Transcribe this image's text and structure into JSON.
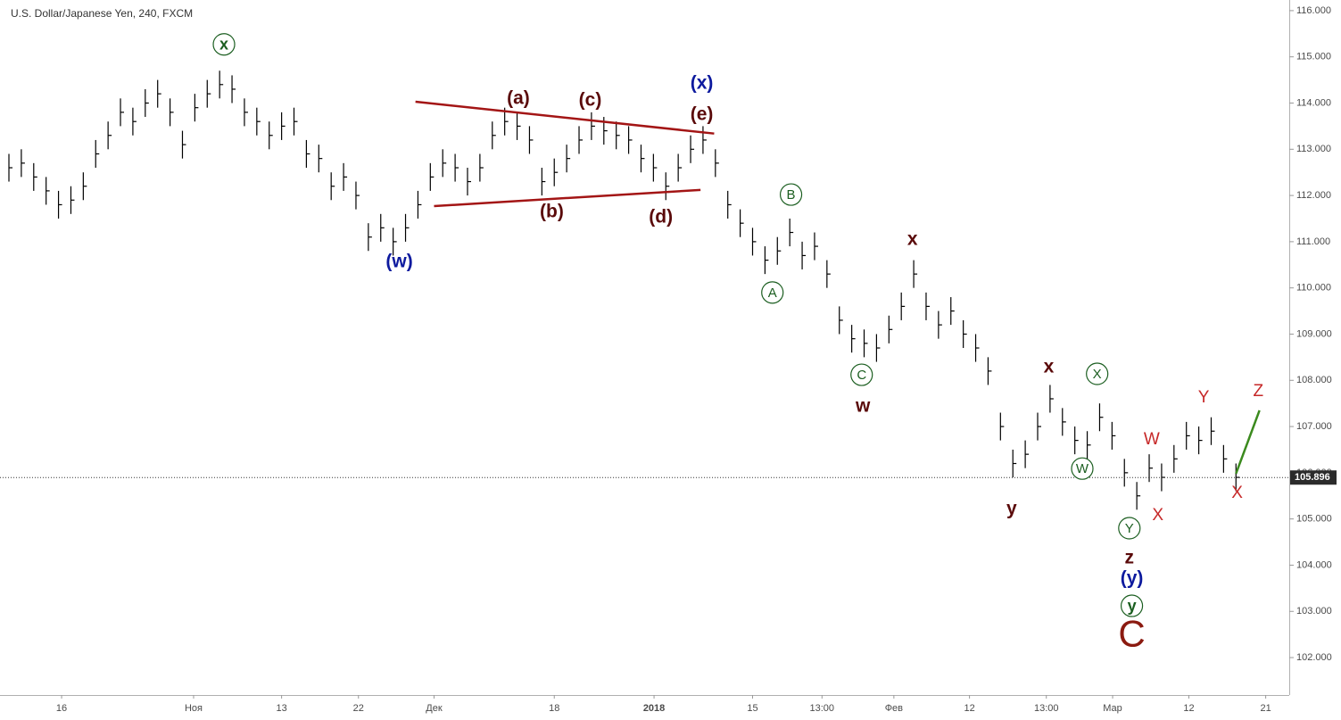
{
  "chart_data": {
    "type": "ohlc",
    "title": "U.S. Dollar/Japanese Yen, 240, FXCM",
    "x": [
      0,
      1,
      2,
      3,
      4,
      5,
      6,
      7,
      8,
      9,
      10,
      11,
      12,
      13,
      14,
      15,
      16,
      17,
      18,
      19,
      20,
      21,
      22,
      23,
      24,
      25,
      26,
      27,
      28,
      29,
      30,
      31,
      32,
      33,
      34,
      35,
      36,
      37,
      38,
      39,
      40,
      41,
      42,
      43,
      44,
      45,
      46,
      47,
      48,
      49,
      50,
      51,
      52,
      53,
      54,
      55,
      56,
      57,
      58,
      59,
      60,
      61,
      62,
      63,
      64,
      65,
      66,
      67,
      68,
      69,
      70,
      71,
      72,
      73,
      74,
      75,
      76,
      77,
      78,
      79,
      80,
      81,
      82,
      83,
      84,
      85,
      86,
      87,
      88,
      89,
      90,
      91,
      92,
      93,
      94,
      95,
      96,
      97,
      98,
      99
    ],
    "high": [
      112.9,
      113.0,
      112.7,
      112.4,
      112.1,
      112.2,
      112.5,
      113.2,
      113.6,
      114.1,
      113.9,
      114.3,
      114.5,
      114.1,
      113.4,
      114.2,
      114.5,
      114.7,
      114.6,
      114.1,
      113.9,
      113.6,
      113.8,
      113.9,
      113.2,
      113.1,
      112.5,
      112.7,
      112.3,
      111.4,
      111.6,
      111.3,
      111.6,
      112.1,
      112.7,
      113.0,
      112.9,
      112.6,
      112.9,
      113.6,
      113.9,
      113.8,
      113.5,
      112.6,
      112.8,
      113.1,
      113.5,
      113.8,
      113.7,
      113.6,
      113.5,
      113.1,
      112.9,
      112.5,
      112.9,
      113.3,
      113.5,
      113.0,
      112.1,
      111.7,
      111.3,
      110.9,
      111.1,
      111.5,
      111.0,
      111.2,
      110.6,
      109.6,
      109.2,
      109.1,
      109.0,
      109.4,
      109.9,
      110.6,
      109.9,
      109.5,
      109.8,
      109.3,
      109.0,
      108.5,
      107.3,
      106.5,
      106.7,
      107.3,
      107.9,
      107.4,
      107.0,
      106.9,
      107.5,
      107.1,
      106.3,
      105.8,
      106.4,
      106.2,
      106.6,
      107.1,
      107.0,
      107.2,
      106.6,
      106.2
    ],
    "low": [
      112.3,
      112.4,
      112.1,
      111.8,
      111.5,
      111.6,
      111.9,
      112.6,
      113.0,
      113.5,
      113.3,
      113.7,
      113.9,
      113.5,
      112.8,
      113.6,
      113.9,
      114.1,
      114.0,
      113.5,
      113.3,
      113.0,
      113.2,
      113.3,
      112.6,
      112.5,
      111.9,
      112.1,
      111.7,
      110.8,
      111.0,
      110.7,
      111.0,
      111.5,
      112.1,
      112.4,
      112.3,
      112.0,
      112.3,
      113.0,
      113.3,
      113.2,
      112.9,
      112.0,
      112.2,
      112.5,
      112.9,
      113.2,
      113.1,
      113.0,
      112.9,
      112.5,
      112.3,
      111.9,
      112.3,
      112.7,
      112.9,
      112.4,
      111.5,
      111.1,
      110.7,
      110.3,
      110.5,
      110.9,
      110.4,
      110.6,
      110.0,
      109.0,
      108.6,
      108.5,
      108.4,
      108.8,
      109.3,
      110.0,
      109.3,
      108.9,
      109.2,
      108.7,
      108.4,
      107.9,
      106.7,
      105.9,
      106.1,
      106.7,
      107.3,
      106.8,
      106.4,
      106.3,
      106.9,
      106.5,
      105.7,
      105.2,
      105.8,
      105.6,
      106.0,
      106.5,
      106.4,
      106.6,
      106.0,
      105.6
    ],
    "close": [
      112.6,
      112.7,
      112.4,
      112.1,
      111.8,
      111.9,
      112.2,
      112.9,
      113.3,
      113.8,
      113.6,
      114.0,
      114.2,
      113.8,
      113.1,
      113.9,
      114.2,
      114.4,
      114.3,
      113.8,
      113.6,
      113.3,
      113.5,
      113.6,
      112.9,
      112.8,
      112.2,
      112.4,
      112.0,
      111.1,
      111.3,
      111.0,
      111.3,
      111.8,
      112.4,
      112.7,
      112.6,
      112.3,
      112.6,
      113.3,
      113.6,
      113.5,
      113.2,
      112.3,
      112.5,
      112.8,
      113.2,
      113.5,
      113.4,
      113.3,
      113.2,
      112.8,
      112.6,
      112.2,
      112.6,
      113.0,
      113.2,
      112.7,
      111.8,
      111.4,
      111.0,
      110.6,
      110.8,
      111.2,
      110.7,
      110.9,
      110.3,
      109.3,
      108.9,
      108.8,
      108.7,
      109.1,
      109.6,
      110.3,
      109.6,
      109.2,
      109.5,
      109.0,
      108.7,
      108.2,
      107.0,
      106.2,
      106.4,
      107.0,
      107.6,
      107.1,
      106.7,
      106.6,
      107.2,
      106.8,
      106.0,
      105.5,
      106.1,
      105.9,
      106.3,
      106.8,
      106.7,
      106.9,
      106.3,
      105.9
    ],
    "color": "#000000",
    "xlim": [
      -0.72,
      103.3
    ],
    "ylim": [
      101.19,
      116.23
    ],
    "xticks": [
      {
        "value": 4.25,
        "label": "16"
      },
      {
        "value": 14.9,
        "label": "Ноя"
      },
      {
        "value": 22.0,
        "label": "13"
      },
      {
        "value": 28.2,
        "label": "22"
      },
      {
        "value": 34.3,
        "label": "Дек"
      },
      {
        "value": 44.0,
        "label": "18"
      },
      {
        "value": 52.05,
        "label": "2018"
      },
      {
        "value": 60.0,
        "label": "15"
      },
      {
        "value": 65.6,
        "label": "13:00"
      },
      {
        "value": 71.4,
        "label": "Фев"
      },
      {
        "value": 77.5,
        "label": "12"
      },
      {
        "value": 83.7,
        "label": "13:00"
      },
      {
        "value": 89.05,
        "label": "Мар"
      },
      {
        "value": 95.2,
        "label": "12"
      },
      {
        "value": 101.4,
        "label": "21"
      }
    ],
    "yticks": [
      {
        "value": 102,
        "label": "102.000"
      },
      {
        "value": 103,
        "label": "103.000"
      },
      {
        "value": 104,
        "label": "104.000"
      },
      {
        "value": 105,
        "label": "105.000"
      },
      {
        "value": 106,
        "label": "106.000"
      },
      {
        "value": 107,
        "label": "107.000"
      },
      {
        "value": 108,
        "label": "108.000"
      },
      {
        "value": 109,
        "label": "109.000"
      },
      {
        "value": 110,
        "label": "110.000"
      },
      {
        "value": 111,
        "label": "111.000"
      },
      {
        "value": 112,
        "label": "112.000"
      },
      {
        "value": 113,
        "label": "113.000"
      },
      {
        "value": 114,
        "label": "114.000"
      },
      {
        "value": 115,
        "label": "115.000"
      },
      {
        "value": 116,
        "label": "116.000"
      }
    ],
    "last_price": 105.896,
    "grid": false,
    "annotations": [
      {
        "text": "x",
        "x": 17.35,
        "y": 115.27,
        "color": "#1b5e20",
        "style": "circled-bold"
      },
      {
        "text": "(w)",
        "x": 31.5,
        "y": 110.57,
        "color": "#0d1a9e",
        "style": "bold"
      },
      {
        "text": "(a)",
        "x": 41.1,
        "y": 114.11,
        "color": "#5a0a0a",
        "style": "bold"
      },
      {
        "text": "(c)",
        "x": 46.9,
        "y": 114.07,
        "color": "#5a0a0a",
        "style": "bold"
      },
      {
        "text": "(x)",
        "x": 55.9,
        "y": 114.44,
        "color": "#0d1a9e",
        "style": "bold"
      },
      {
        "text": "(e)",
        "x": 55.9,
        "y": 113.76,
        "color": "#5a0a0a",
        "style": "bold"
      },
      {
        "text": "(b)",
        "x": 43.8,
        "y": 111.66,
        "color": "#5a0a0a",
        "style": "bold"
      },
      {
        "text": "(d)",
        "x": 52.6,
        "y": 111.54,
        "color": "#5a0a0a",
        "style": "bold"
      },
      {
        "text": "B",
        "x": 63.1,
        "y": 112.02,
        "color": "#1b5e20",
        "style": "circled"
      },
      {
        "text": "A",
        "x": 61.6,
        "y": 109.9,
        "color": "#1b5e20",
        "style": "circled"
      },
      {
        "text": "x",
        "x": 72.9,
        "y": 111.06,
        "color": "#5a0a0a",
        "style": "bold"
      },
      {
        "text": "C",
        "x": 68.8,
        "y": 108.12,
        "color": "#1b5e20",
        "style": "circled"
      },
      {
        "text": "w",
        "x": 68.9,
        "y": 107.45,
        "color": "#5a0a0a",
        "style": "bold"
      },
      {
        "text": "x",
        "x": 83.9,
        "y": 108.3,
        "color": "#5a0a0a",
        "style": "bold"
      },
      {
        "text": "X",
        "x": 87.8,
        "y": 108.14,
        "color": "#1b5e20",
        "style": "circled"
      },
      {
        "text": "W",
        "x": 86.6,
        "y": 106.09,
        "color": "#1b5e20",
        "style": "circled"
      },
      {
        "text": "y",
        "x": 80.9,
        "y": 105.23,
        "color": "#5a0a0a",
        "style": "bold"
      },
      {
        "text": "W",
        "x": 92.2,
        "y": 106.73,
        "color": "#c62828",
        "style": "plain"
      },
      {
        "text": "Y",
        "x": 96.4,
        "y": 107.64,
        "color": "#c62828",
        "style": "plain"
      },
      {
        "text": "Z",
        "x": 100.8,
        "y": 107.77,
        "color": "#c62828",
        "style": "plain"
      },
      {
        "text": "X",
        "x": 92.7,
        "y": 105.09,
        "color": "#c62828",
        "style": "plain"
      },
      {
        "text": "X",
        "x": 99.1,
        "y": 105.57,
        "color": "#c62828",
        "style": "plain"
      },
      {
        "text": "Y",
        "x": 90.4,
        "y": 104.8,
        "color": "#1b5e20",
        "style": "circled"
      },
      {
        "text": "z",
        "x": 90.4,
        "y": 104.16,
        "color": "#5a0a0a",
        "style": "bold"
      },
      {
        "text": "(y)",
        "x": 90.6,
        "y": 103.72,
        "color": "#0d1a9e",
        "style": "bold"
      },
      {
        "text": "y",
        "x": 90.6,
        "y": 103.12,
        "color": "#1b5e20",
        "style": "circled-bold"
      },
      {
        "text": "C",
        "x": 90.6,
        "y": 102.48,
        "color": "#8b1a10",
        "style": "large"
      }
    ],
    "trendlines": [
      {
        "x": [
          32.8,
          56.9
        ],
        "y": [
          114.03,
          113.34
        ],
        "color": "#a31515"
      },
      {
        "x": [
          34.3,
          55.8
        ],
        "y": [
          111.77,
          112.12
        ],
        "color": "#a31515"
      },
      {
        "x": [
          99.0,
          100.9
        ],
        "y": [
          105.98,
          107.35
        ],
        "color": "#3b8a1e"
      }
    ]
  }
}
